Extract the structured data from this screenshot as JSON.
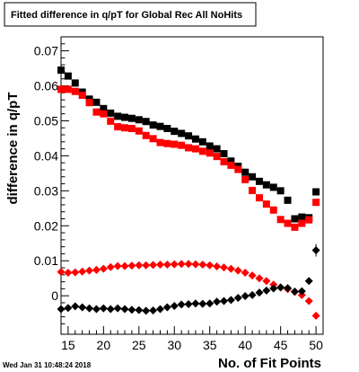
{
  "chart_data": {
    "type": "scatter",
    "title": "Fitted difference in q/pT for Global Rec All NoHits",
    "xlabel": "No. of Fit Points",
    "ylabel": "difference in q/pT",
    "xlim": [
      14,
      51
    ],
    "ylim": [
      -0.011,
      0.074
    ],
    "x_ticks": [
      15,
      20,
      25,
      30,
      35,
      40,
      45,
      50
    ],
    "y_ticks": [
      0,
      0.01,
      0.02,
      0.03,
      0.04,
      0.05,
      0.06,
      0.07
    ],
    "x_tick_labels": [
      "15",
      "20",
      "25",
      "30",
      "35",
      "40",
      "45",
      "50"
    ],
    "y_tick_labels": [
      "0",
      "0.01",
      "0.02",
      "0.03",
      "0.04",
      "0.05",
      "0.06",
      "0.07"
    ],
    "grid": false,
    "series": [
      {
        "marker": "square",
        "color": "#000000",
        "x": [
          14,
          15,
          16,
          17,
          18,
          19,
          20,
          21,
          22,
          23,
          24,
          25,
          26,
          27,
          28,
          29,
          30,
          31,
          32,
          33,
          34,
          35,
          36,
          37,
          38,
          39,
          40,
          41,
          42,
          43,
          44,
          45,
          46,
          47,
          48,
          49,
          50
        ],
        "y": [
          0.0645,
          0.0628,
          0.0608,
          0.0582,
          0.0562,
          0.0553,
          0.0535,
          0.0522,
          0.0513,
          0.051,
          0.0507,
          0.0503,
          0.0498,
          0.0488,
          0.0484,
          0.0478,
          0.047,
          0.0464,
          0.0457,
          0.0448,
          0.044,
          0.0428,
          0.042,
          0.0406,
          0.0385,
          0.037,
          0.0353,
          0.034,
          0.0327,
          0.0317,
          0.031,
          0.03,
          0.0273,
          0.022,
          0.0225,
          0.0223,
          0.0297
        ]
      },
      {
        "marker": "square",
        "color": "#ff0000",
        "x": [
          14,
          15,
          16,
          17,
          18,
          19,
          20,
          21,
          22,
          23,
          24,
          25,
          26,
          27,
          28,
          29,
          30,
          31,
          32,
          33,
          34,
          35,
          36,
          37,
          38,
          39,
          40,
          41,
          42,
          43,
          44,
          45,
          46,
          47,
          48,
          49,
          50
        ],
        "y": [
          0.059,
          0.059,
          0.0584,
          0.0573,
          0.0552,
          0.0525,
          0.052,
          0.0499,
          0.0483,
          0.048,
          0.0478,
          0.0471,
          0.0458,
          0.0449,
          0.0438,
          0.0435,
          0.0433,
          0.043,
          0.0423,
          0.042,
          0.0413,
          0.0408,
          0.0398,
          0.0383,
          0.0373,
          0.0361,
          0.0332,
          0.0301,
          0.028,
          0.0262,
          0.0245,
          0.0218,
          0.0207,
          0.0196,
          0.0207,
          0.0217,
          0.0267
        ]
      },
      {
        "marker": "diamond",
        "color": "#ff0000",
        "x": [
          14,
          15,
          16,
          17,
          18,
          19,
          20,
          21,
          22,
          23,
          24,
          25,
          26,
          27,
          28,
          29,
          30,
          31,
          32,
          33,
          34,
          35,
          36,
          37,
          38,
          39,
          40,
          41,
          42,
          43,
          44,
          45,
          46,
          47,
          48,
          49,
          50
        ],
        "y": [
          0.0068,
          0.0066,
          0.0067,
          0.0069,
          0.0072,
          0.0074,
          0.0077,
          0.0082,
          0.0085,
          0.0085,
          0.0086,
          0.0087,
          0.0087,
          0.0088,
          0.0089,
          0.0089,
          0.009,
          0.0091,
          0.0091,
          0.009,
          0.0089,
          0.0087,
          0.0084,
          0.0081,
          0.0077,
          0.0072,
          0.0066,
          0.0058,
          0.005,
          0.0042,
          0.0032,
          0.0024,
          0.0019,
          0.0011,
          0.0002,
          -0.0015,
          -0.0057
        ]
      },
      {
        "marker": "diamond",
        "color": "#000000",
        "x": [
          14,
          15,
          16,
          17,
          18,
          19,
          20,
          21,
          22,
          23,
          24,
          25,
          26,
          27,
          28,
          29,
          30,
          31,
          32,
          33,
          34,
          35,
          36,
          37,
          38,
          39,
          40,
          41,
          42,
          43,
          44,
          45,
          46,
          47,
          48,
          49,
          50
        ],
        "y": [
          -0.0038,
          -0.0035,
          -0.003,
          -0.0033,
          -0.0036,
          -0.0038,
          -0.0036,
          -0.0038,
          -0.0036,
          -0.0038,
          -0.004,
          -0.0041,
          -0.0043,
          -0.0042,
          -0.0038,
          -0.0033,
          -0.0029,
          -0.0025,
          -0.0024,
          -0.0022,
          -0.0023,
          -0.0022,
          -0.0017,
          -0.0015,
          -0.0012,
          -0.0006,
          -0.0001,
          0.0002,
          0.0009,
          0.0015,
          0.0021,
          0.0024,
          0.0022,
          0.0012,
          0.0013,
          0.0042,
          0.013
        ]
      }
    ]
  },
  "footer": {
    "timestamp": "Wed Jan 31 10:48:24 2018"
  }
}
